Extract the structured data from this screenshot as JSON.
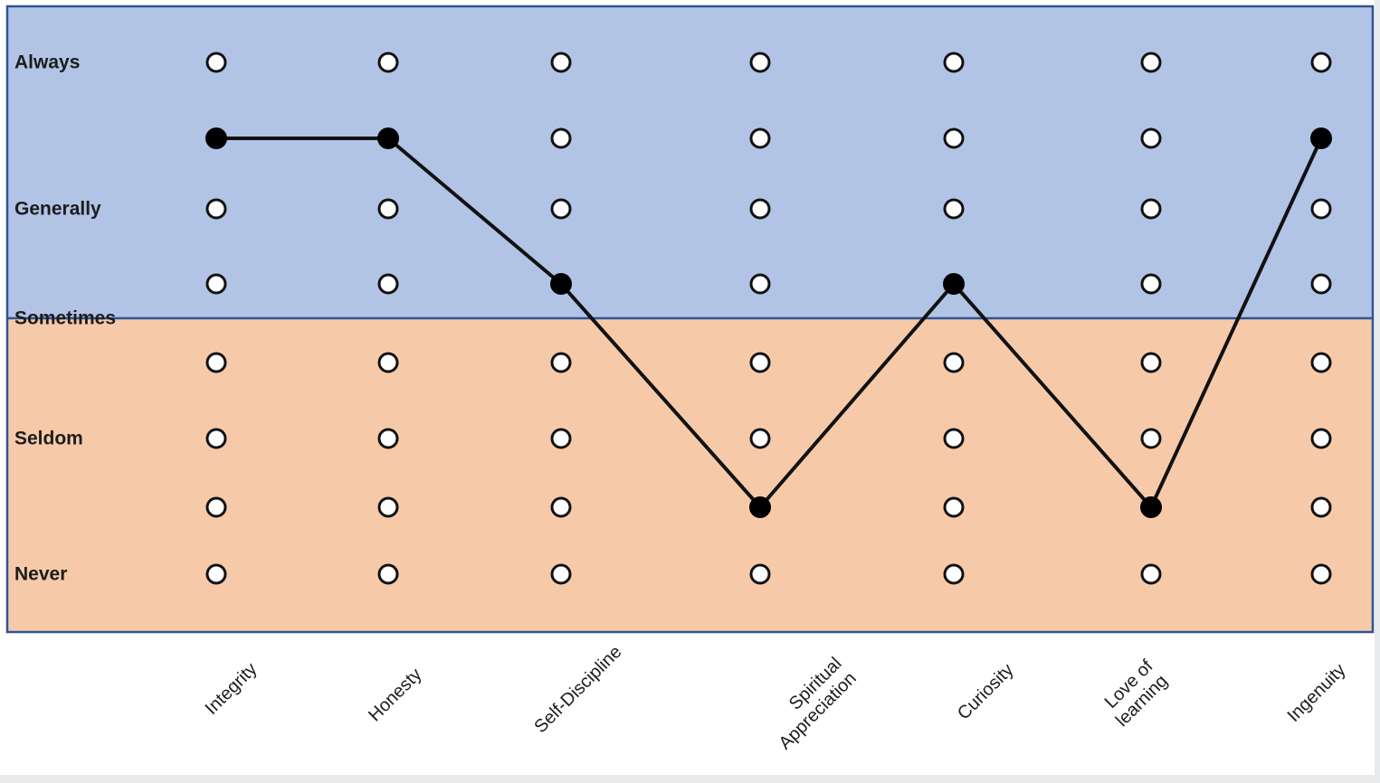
{
  "chart_data": {
    "type": "line",
    "subtype": "rating-grid-profile",
    "categories": [
      "Integrity",
      "Honesty",
      "Self-Discipline",
      "Spiritual Appreciation",
      "Curiosity",
      "Love of learning",
      "Ingenuity"
    ],
    "category_label_lines": [
      [
        "Integrity"
      ],
      [
        "Honesty"
      ],
      [
        "Self-Discipline"
      ],
      [
        "Spiritual",
        "Appreciation"
      ],
      [
        "Curiosity"
      ],
      [
        "Love of",
        "learning"
      ],
      [
        "Ingenuity"
      ]
    ],
    "y_axis": {
      "rows_total": 8,
      "labels": [
        {
          "text": "Always",
          "row": 0,
          "at_zone_boundary": false
        },
        {
          "text": "Generally",
          "row": 2,
          "at_zone_boundary": false
        },
        {
          "text": "Sometimes",
          "row": null,
          "at_zone_boundary": true
        },
        {
          "text": "Seldom",
          "row": 5,
          "at_zone_boundary": false
        },
        {
          "text": "Never",
          "row": 7,
          "at_zone_boundary": false
        }
      ]
    },
    "series": [
      {
        "name": "selected-ratings",
        "selected_row_by_category": [
          1,
          1,
          3,
          6,
          3,
          6,
          1
        ],
        "selected_rating_zone_by_category": [
          "upper (Always-Generally)",
          "upper (Always-Generally)",
          "upper (Generally-Sometimes)",
          "lower (Seldom-Never)",
          "upper (Generally-Sometimes)",
          "lower (Seldom-Never)",
          "upper (Always-Generally)"
        ]
      }
    ],
    "zones": {
      "upper_color": "#b2c4e6",
      "lower_color": "#f6caa9",
      "border_color": "#2e5394"
    },
    "markers": {
      "open_fill": "#ffffff",
      "open_stroke": "#111111",
      "selected_fill": "#000000",
      "line_color": "#111111"
    },
    "page": {
      "background_color": "#ffffff",
      "outside_color": "#e9eaec",
      "text_color": "#1c1c1c"
    },
    "grid": {
      "rows": 8,
      "cols": 7,
      "legend": "none",
      "gridlines": "none (dot grid only)"
    }
  }
}
